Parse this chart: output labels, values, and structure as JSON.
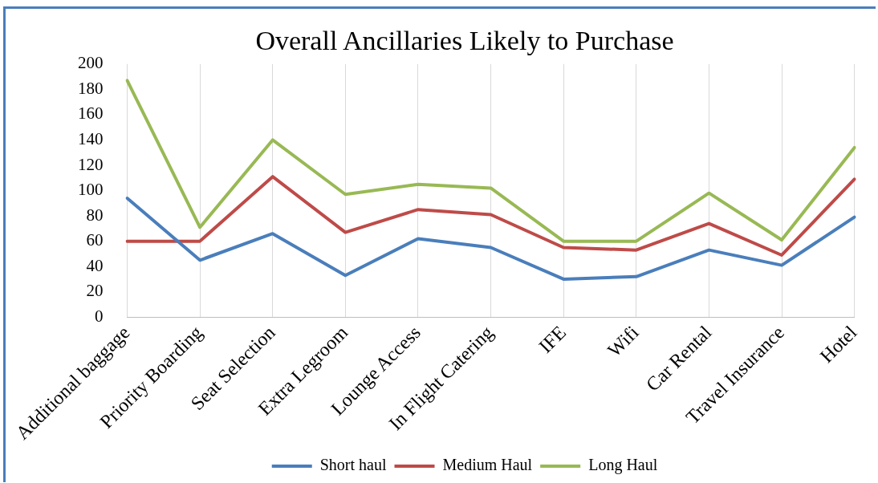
{
  "chart_data": {
    "type": "line",
    "title": "Overall Ancillaries Likely to Purchase",
    "categories": [
      "Additional baggage",
      "Priority Boarding",
      "Seat Selection",
      "Extra Legroom",
      "Lounge Access",
      "In Flight Catering",
      "IFE",
      "Wifi",
      "Car Rental",
      "Travel Insurance",
      "Hotel"
    ],
    "series": [
      {
        "name": "Short haul",
        "color": "#4a7ebb",
        "values": [
          94,
          45,
          66,
          33,
          62,
          55,
          30,
          32,
          53,
          41,
          79
        ]
      },
      {
        "name": "Medium Haul",
        "color": "#be4b48",
        "values": [
          60,
          60,
          111,
          67,
          85,
          81,
          55,
          53,
          74,
          49,
          109
        ]
      },
      {
        "name": "Long Haul",
        "color": "#98b954",
        "values": [
          187,
          71,
          140,
          97,
          105,
          102,
          60,
          60,
          98,
          61,
          134
        ]
      }
    ],
    "ylim": [
      0,
      200
    ],
    "yticks": [
      0,
      20,
      40,
      60,
      80,
      100,
      120,
      140,
      160,
      180,
      200
    ],
    "grid": "x",
    "legend": "bottom",
    "marker": "none",
    "line_style": "solid"
  }
}
